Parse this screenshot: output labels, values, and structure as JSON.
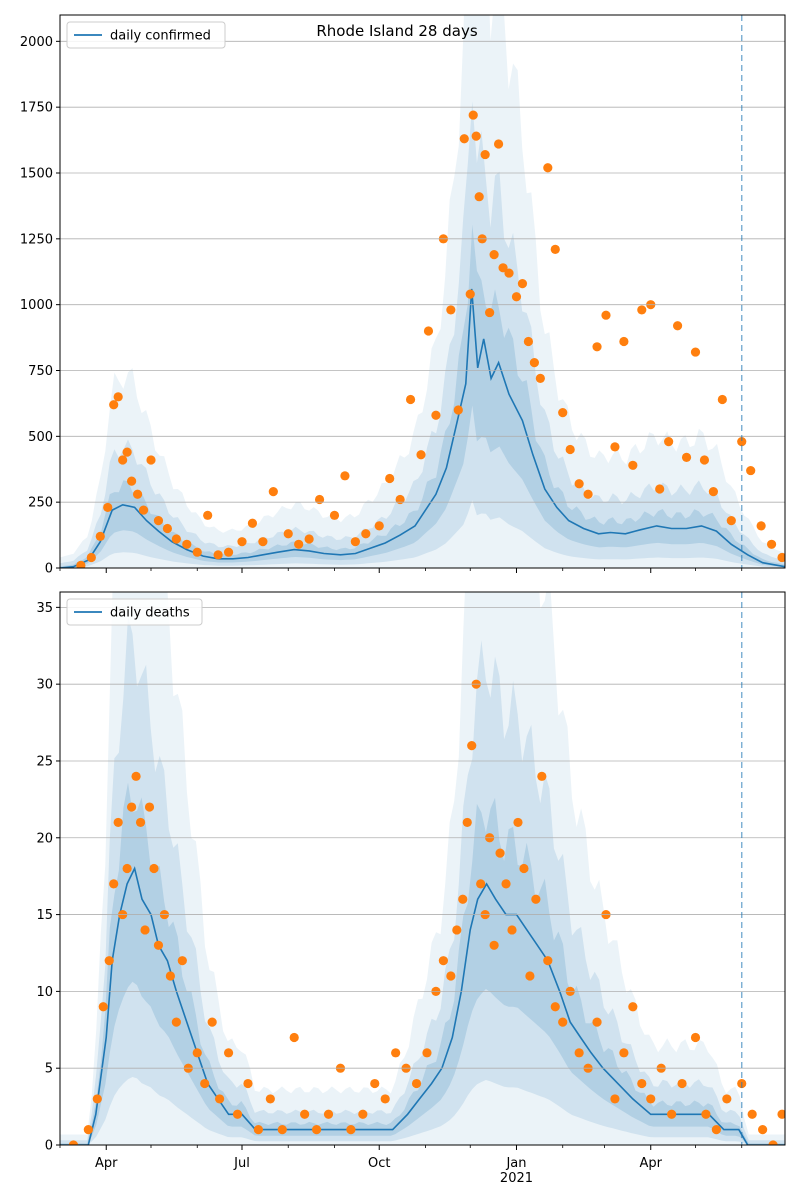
{
  "title": "Rhode Island 28 days",
  "x_axis": {
    "start": "2020-03-01",
    "end": "2021-06-30",
    "ticks": [
      {
        "date": "2020-04-01",
        "label": "Apr"
      },
      {
        "date": "2020-07-01",
        "label": "Jul"
      },
      {
        "date": "2020-10-01",
        "label": "Oct"
      },
      {
        "date": "2021-01-01",
        "label": "Jan"
      },
      {
        "date": "2021-04-01",
        "label": "Apr"
      }
    ],
    "minor_ticks": [
      "2020-03-01",
      "2020-05-01",
      "2020-06-01",
      "2020-08-01",
      "2020-09-01",
      "2020-11-01",
      "2020-12-01",
      "2021-02-01",
      "2021-03-01",
      "2021-05-01",
      "2021-06-01"
    ],
    "year_label": "2021",
    "forecast_marker_date": "2021-06-01"
  },
  "colors": {
    "line": "#1f77b4",
    "points": "#ff7f0e",
    "band": "#1f77b4",
    "grid": "#b0b0b0",
    "forecast": "#1f77b4"
  },
  "chart_data": [
    {
      "type": "line",
      "legend": "daily confirmed",
      "legend_position": "top-left",
      "grid": "horizontal",
      "ylim": [
        0,
        2100
      ],
      "yticks": [
        "0",
        "250",
        "500",
        "750",
        "1000",
        "1250",
        "1500",
        "1750",
        "2000"
      ],
      "series": [
        {
          "name": "daily confirmed",
          "kind": "line",
          "x": [
            "2020-03-01",
            "2020-03-10",
            "2020-03-20",
            "2020-03-28",
            "2020-04-05",
            "2020-04-12",
            "2020-04-20",
            "2020-04-28",
            "2020-05-06",
            "2020-05-15",
            "2020-05-25",
            "2020-06-05",
            "2020-06-15",
            "2020-06-25",
            "2020-07-05",
            "2020-07-15",
            "2020-07-25",
            "2020-08-05",
            "2020-08-15",
            "2020-08-25",
            "2020-09-05",
            "2020-09-15",
            "2020-09-25",
            "2020-10-05",
            "2020-10-15",
            "2020-10-25",
            "2020-11-01",
            "2020-11-08",
            "2020-11-15",
            "2020-11-22",
            "2020-11-28",
            "2020-12-02",
            "2020-12-06",
            "2020-12-10",
            "2020-12-15",
            "2020-12-20",
            "2020-12-27",
            "2021-01-05",
            "2021-01-12",
            "2021-01-20",
            "2021-01-28",
            "2021-02-05",
            "2021-02-15",
            "2021-02-25",
            "2021-03-05",
            "2021-03-15",
            "2021-03-25",
            "2021-04-05",
            "2021-04-15",
            "2021-04-25",
            "2021-05-05",
            "2021-05-15",
            "2021-05-25",
            "2021-06-05",
            "2021-06-15",
            "2021-06-30"
          ],
          "y": [
            0,
            5,
            30,
            100,
            220,
            240,
            230,
            180,
            140,
            100,
            70,
            45,
            35,
            35,
            40,
            50,
            60,
            70,
            65,
            55,
            50,
            55,
            75,
            95,
            125,
            160,
            220,
            280,
            380,
            550,
            700,
            1060,
            760,
            870,
            720,
            780,
            660,
            560,
            430,
            300,
            230,
            180,
            150,
            130,
            135,
            130,
            145,
            160,
            150,
            150,
            160,
            140,
            90,
            50,
            20,
            5
          ]
        },
        {
          "name": "observed",
          "kind": "scatter",
          "x": [
            "2020-03-15",
            "2020-03-22",
            "2020-03-28",
            "2020-04-02",
            "2020-04-06",
            "2020-04-09",
            "2020-04-12",
            "2020-04-15",
            "2020-04-18",
            "2020-04-22",
            "2020-04-26",
            "2020-05-01",
            "2020-05-06",
            "2020-05-12",
            "2020-05-18",
            "2020-05-25",
            "2020-06-01",
            "2020-06-08",
            "2020-06-15",
            "2020-06-22",
            "2020-07-01",
            "2020-07-08",
            "2020-07-15",
            "2020-07-22",
            "2020-08-01",
            "2020-08-08",
            "2020-08-15",
            "2020-08-22",
            "2020-09-01",
            "2020-09-08",
            "2020-09-15",
            "2020-09-22",
            "2020-10-01",
            "2020-10-08",
            "2020-10-15",
            "2020-10-22",
            "2020-10-29",
            "2020-11-03",
            "2020-11-08",
            "2020-11-13",
            "2020-11-18",
            "2020-11-23",
            "2020-11-27",
            "2020-12-01",
            "2020-12-03",
            "2020-12-05",
            "2020-12-07",
            "2020-12-09",
            "2020-12-11",
            "2020-12-14",
            "2020-12-17",
            "2020-12-20",
            "2020-12-23",
            "2020-12-27",
            "2021-01-01",
            "2021-01-05",
            "2021-01-09",
            "2021-01-13",
            "2021-01-17",
            "2021-01-22",
            "2021-01-27",
            "2021-02-01",
            "2021-02-06",
            "2021-02-12",
            "2021-02-18",
            "2021-02-24",
            "2021-03-02",
            "2021-03-08",
            "2021-03-14",
            "2021-03-20",
            "2021-03-26",
            "2021-04-01",
            "2021-04-07",
            "2021-04-13",
            "2021-04-19",
            "2021-04-25",
            "2021-05-01",
            "2021-05-07",
            "2021-05-13",
            "2021-05-19",
            "2021-05-25",
            "2021-06-01",
            "2021-06-07",
            "2021-06-14",
            "2021-06-21",
            "2021-06-28"
          ],
          "y": [
            10,
            40,
            120,
            230,
            620,
            650,
            410,
            440,
            330,
            280,
            220,
            410,
            180,
            150,
            110,
            90,
            60,
            200,
            50,
            60,
            100,
            170,
            100,
            290,
            130,
            90,
            110,
            260,
            200,
            350,
            100,
            130,
            160,
            340,
            260,
            640,
            430,
            900,
            580,
            1250,
            980,
            600,
            1630,
            1040,
            1720,
            1640,
            1410,
            1250,
            1570,
            970,
            1190,
            1610,
            1140,
            1120,
            1030,
            1080,
            860,
            780,
            720,
            1520,
            1210,
            590,
            450,
            320,
            280,
            840,
            960,
            460,
            860,
            390,
            980,
            1000,
            300,
            480,
            920,
            420,
            820,
            410,
            290,
            640,
            180,
            480,
            370,
            160,
            90,
            40
          ]
        }
      ]
    },
    {
      "type": "line",
      "legend": "daily deaths",
      "legend_position": "top-left",
      "grid": "horizontal",
      "ylim": [
        0,
        36
      ],
      "yticks": [
        "0",
        "5",
        "10",
        "15",
        "20",
        "25",
        "30",
        "35"
      ],
      "series": [
        {
          "name": "daily deaths",
          "kind": "line",
          "x": [
            "2020-03-01",
            "2020-03-20",
            "2020-03-25",
            "2020-04-01",
            "2020-04-05",
            "2020-04-10",
            "2020-04-15",
            "2020-04-20",
            "2020-04-25",
            "2020-05-01",
            "2020-05-06",
            "2020-05-12",
            "2020-05-18",
            "2020-05-25",
            "2020-06-01",
            "2020-06-08",
            "2020-06-15",
            "2020-06-22",
            "2020-07-01",
            "2020-07-10",
            "2020-07-20",
            "2020-08-01",
            "2020-08-15",
            "2020-09-01",
            "2020-09-15",
            "2020-10-01",
            "2020-10-10",
            "2020-10-20",
            "2020-10-28",
            "2020-11-05",
            "2020-11-12",
            "2020-11-19",
            "2020-11-25",
            "2020-12-01",
            "2020-12-06",
            "2020-12-12",
            "2020-12-18",
            "2020-12-25",
            "2021-01-01",
            "2021-01-08",
            "2021-01-15",
            "2021-01-22",
            "2021-01-30",
            "2021-02-06",
            "2021-02-13",
            "2021-02-20",
            "2021-02-28",
            "2021-03-10",
            "2021-03-20",
            "2021-04-01",
            "2021-04-10",
            "2021-04-20",
            "2021-05-01",
            "2021-05-10",
            "2021-05-20",
            "2021-05-30",
            "2021-06-05",
            "2021-06-15",
            "2021-06-30"
          ],
          "y": [
            0,
            0,
            2,
            7,
            12,
            15,
            17,
            18,
            16,
            15,
            13,
            12,
            10,
            8,
            6,
            4,
            3,
            2,
            2,
            1,
            1,
            1,
            1,
            1,
            1,
            1,
            1,
            2,
            3,
            4,
            5,
            7,
            10,
            14,
            16,
            17,
            16,
            15,
            15,
            14,
            13,
            12,
            10,
            8,
            7,
            6,
            5,
            4,
            3,
            2,
            2,
            2,
            2,
            2,
            1,
            1,
            0,
            0,
            0
          ]
        },
        {
          "name": "observed",
          "kind": "scatter",
          "x": [
            "2020-03-10",
            "2020-03-20",
            "2020-03-26",
            "2020-03-30",
            "2020-04-03",
            "2020-04-06",
            "2020-04-09",
            "2020-04-12",
            "2020-04-15",
            "2020-04-18",
            "2020-04-21",
            "2020-04-24",
            "2020-04-27",
            "2020-04-30",
            "2020-05-03",
            "2020-05-06",
            "2020-05-10",
            "2020-05-14",
            "2020-05-18",
            "2020-05-22",
            "2020-05-26",
            "2020-06-01",
            "2020-06-06",
            "2020-06-11",
            "2020-06-16",
            "2020-06-22",
            "2020-06-28",
            "2020-07-05",
            "2020-07-12",
            "2020-07-20",
            "2020-07-28",
            "2020-08-05",
            "2020-08-12",
            "2020-08-20",
            "2020-08-28",
            "2020-09-05",
            "2020-09-12",
            "2020-09-20",
            "2020-09-28",
            "2020-10-05",
            "2020-10-12",
            "2020-10-19",
            "2020-10-26",
            "2020-11-02",
            "2020-11-08",
            "2020-11-13",
            "2020-11-18",
            "2020-11-22",
            "2020-11-26",
            "2020-11-29",
            "2020-12-02",
            "2020-12-05",
            "2020-12-08",
            "2020-12-11",
            "2020-12-14",
            "2020-12-17",
            "2020-12-21",
            "2020-12-25",
            "2020-12-29",
            "2021-01-02",
            "2021-01-06",
            "2021-01-10",
            "2021-01-14",
            "2021-01-18",
            "2021-01-22",
            "2021-01-27",
            "2021-02-01",
            "2021-02-06",
            "2021-02-12",
            "2021-02-18",
            "2021-02-24",
            "2021-03-02",
            "2021-03-08",
            "2021-03-14",
            "2021-03-20",
            "2021-03-26",
            "2021-04-01",
            "2021-04-08",
            "2021-04-15",
            "2021-04-22",
            "2021-05-01",
            "2021-05-08",
            "2021-05-15",
            "2021-05-22",
            "2021-06-01",
            "2021-06-08",
            "2021-06-15",
            "2021-06-22",
            "2021-06-28"
          ],
          "y": [
            0,
            1,
            3,
            9,
            12,
            17,
            21,
            15,
            18,
            22,
            24,
            21,
            14,
            22,
            18,
            13,
            15,
            11,
            8,
            12,
            5,
            6,
            4,
            8,
            3,
            6,
            2,
            4,
            1,
            3,
            1,
            7,
            2,
            1,
            2,
            5,
            1,
            2,
            4,
            3,
            6,
            5,
            4,
            6,
            10,
            12,
            11,
            14,
            16,
            21,
            26,
            30,
            17,
            15,
            20,
            13,
            19,
            17,
            14,
            21,
            18,
            11,
            16,
            24,
            12,
            9,
            8,
            10,
            6,
            5,
            8,
            15,
            3,
            6,
            9,
            4,
            3,
            5,
            2,
            4,
            7,
            2,
            1,
            3,
            4,
            2,
            1,
            0,
            2
          ]
        }
      ]
    }
  ]
}
